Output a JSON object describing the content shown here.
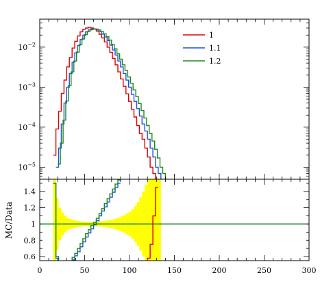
{
  "chart_data": [
    {
      "panel": "main",
      "type": "step-line",
      "y_scale": "log",
      "xlim": [
        0,
        300
      ],
      "ylim": [
        5e-06,
        0.05
      ],
      "xlabel": "",
      "ylabel": "",
      "grid": false,
      "legend_position": "top-right",
      "y_ticks": [
        {
          "value": 1e-05,
          "label_base": "10",
          "label_exp": "−5"
        },
        {
          "value": 0.0001,
          "label_base": "10",
          "label_exp": "−4"
        },
        {
          "value": 0.001,
          "label_base": "10",
          "label_exp": "−3"
        },
        {
          "value": 0.01,
          "label_base": "10",
          "label_exp": "−2"
        }
      ],
      "series": [
        {
          "name": "1",
          "color": "#dd0000",
          "bin_edges": [
            15,
            18,
            21,
            24,
            27,
            30,
            33,
            36,
            39,
            42,
            45,
            48,
            51,
            54,
            57,
            60,
            63,
            66,
            69,
            72,
            75,
            78,
            81,
            84,
            87,
            90,
            93,
            96,
            99,
            102,
            105,
            108,
            111,
            114,
            117,
            120,
            123,
            126,
            129,
            132
          ],
          "values": [
            2e-05,
            9e-05,
            0.00025,
            0.0007,
            0.0015,
            0.0032,
            0.0055,
            0.0095,
            0.014,
            0.019,
            0.024,
            0.028,
            0.03,
            0.031,
            0.03,
            0.028,
            0.025,
            0.021,
            0.017,
            0.0135,
            0.01,
            0.0074,
            0.0052,
            0.0036,
            0.0024,
            0.0016,
            0.00105,
            0.00068,
            0.00044,
            0.00028,
            0.00018,
            0.00011,
            7e-05,
            5e-05,
            3e-05,
            1.8e-05,
            1e-05,
            7e-06,
            5e-06
          ]
        },
        {
          "name": "1.1",
          "color": "#1f4fe0",
          "bin_edges": [
            18,
            21,
            24,
            27,
            30,
            33,
            36,
            39,
            42,
            45,
            48,
            51,
            54,
            57,
            60,
            63,
            66,
            69,
            72,
            75,
            78,
            81,
            84,
            87,
            90,
            93,
            96,
            99,
            102,
            105,
            108,
            111,
            114,
            117,
            120,
            123,
            126,
            129,
            132,
            135,
            138
          ],
          "values": [
            1e-05,
            3e-05,
            0.00012,
            0.0004,
            0.001,
            0.0022,
            0.0042,
            0.0072,
            0.011,
            0.0155,
            0.02,
            0.024,
            0.027,
            0.0285,
            0.0285,
            0.027,
            0.0245,
            0.0212,
            0.0178,
            0.0145,
            0.0112,
            0.0085,
            0.0063,
            0.0045,
            0.0032,
            0.0022,
            0.0015,
            0.001,
            0.00066,
            0.00044,
            0.00029,
            0.00019,
            0.00012,
            8e-05,
            5e-05,
            3e-05,
            1.8e-05,
            1e-05,
            7e-06,
            5e-06
          ]
        },
        {
          "name": "1.2",
          "color": "#1a8a1a",
          "bin_edges": [
            20,
            23,
            26,
            29,
            32,
            35,
            38,
            41,
            44,
            47,
            50,
            53,
            56,
            59,
            62,
            65,
            68,
            71,
            74,
            77,
            80,
            83,
            86,
            89,
            92,
            95,
            98,
            101,
            104,
            107,
            110,
            113,
            116,
            119,
            122,
            125,
            128,
            131,
            134,
            137,
            140,
            143
          ],
          "values": [
            1.2e-05,
            4e-05,
            0.00015,
            0.00045,
            0.0011,
            0.0024,
            0.0045,
            0.0075,
            0.0115,
            0.016,
            0.0205,
            0.0245,
            0.0272,
            0.0285,
            0.0282,
            0.0268,
            0.0245,
            0.0215,
            0.0182,
            0.015,
            0.0118,
            0.0091,
            0.0068,
            0.005,
            0.0036,
            0.0026,
            0.0018,
            0.00125,
            0.00085,
            0.00058,
            0.00039,
            0.00026,
            0.00017,
            0.00011,
            7e-05,
            4.5e-05,
            2.8e-05,
            1.7e-05,
            1e-05,
            7e-06,
            5e-06
          ]
        }
      ]
    },
    {
      "panel": "ratio",
      "type": "step-line",
      "xlim": [
        0,
        300
      ],
      "ylim": [
        0.55,
        1.55
      ],
      "xlabel": "",
      "ylabel": "MC/Data",
      "grid": false,
      "x_ticks": [
        0,
        50,
        100,
        150,
        200,
        250,
        300
      ],
      "y_ticks": [
        0.6,
        0.8,
        1,
        1.2,
        1.4
      ],
      "reference": {
        "value": 1,
        "color": "#1a8a1a"
      },
      "uncertainty_band": {
        "color": "#ffff00",
        "bin_edges": [
          15,
          18,
          21,
          24,
          27,
          30,
          33,
          36,
          39,
          42,
          45,
          48,
          51,
          54,
          57,
          60,
          63,
          66,
          69,
          72,
          75,
          78,
          81,
          84,
          87,
          90,
          93,
          96,
          99,
          102,
          105,
          108,
          111,
          114,
          117,
          120,
          123,
          126,
          129,
          132,
          135
        ],
        "half_widths": [
          0.55,
          0.32,
          0.2,
          0.14,
          0.1,
          0.075,
          0.06,
          0.05,
          0.042,
          0.036,
          0.032,
          0.03,
          0.028,
          0.027,
          0.027,
          0.028,
          0.03,
          0.032,
          0.035,
          0.04,
          0.045,
          0.05,
          0.058,
          0.068,
          0.08,
          0.095,
          0.11,
          0.13,
          0.15,
          0.18,
          0.22,
          0.27,
          0.33,
          0.4,
          0.48,
          0.55,
          0.55,
          0.55,
          0.55,
          0.55
        ]
      },
      "series": [
        {
          "name": "1",
          "color": "#dd0000",
          "bin_edges": [
            120,
            123,
            126,
            129,
            132
          ],
          "values": [
            0.58,
            0.75,
            1.1,
            1.45
          ]
        },
        {
          "name": "1.1",
          "color": "#1f4fe0",
          "bin_edges": [
            15,
            18,
            21,
            24,
            27,
            30,
            33,
            36,
            39,
            42,
            45,
            48,
            51,
            54,
            57,
            60,
            63,
            66,
            69,
            72,
            75,
            78,
            81,
            84,
            87,
            90
          ],
          "values": [
            1.5,
            0.6,
            0.45,
            0.42,
            0.44,
            0.47,
            0.51,
            0.56,
            0.61,
            0.66,
            0.72,
            0.78,
            0.84,
            0.89,
            0.94,
            0.99,
            1.04,
            1.1,
            1.16,
            1.21,
            1.27,
            1.33,
            1.39,
            1.45,
            1.5
          ]
        },
        {
          "name": "1.2",
          "color": "#1a8a1a",
          "bin_edges": [
            15,
            18,
            21,
            24,
            27,
            30,
            33,
            36,
            39,
            42,
            45,
            48,
            51,
            54,
            57,
            60,
            63,
            66,
            69,
            72,
            75,
            78,
            81,
            84,
            87,
            90
          ],
          "values": [
            1.5,
            0.58,
            0.47,
            0.45,
            0.47,
            0.5,
            0.54,
            0.59,
            0.64,
            0.7,
            0.76,
            0.82,
            0.88,
            0.93,
            0.98,
            1.02,
            1.07,
            1.13,
            1.19,
            1.25,
            1.31,
            1.37,
            1.43,
            1.49,
            1.54
          ]
        }
      ]
    }
  ]
}
